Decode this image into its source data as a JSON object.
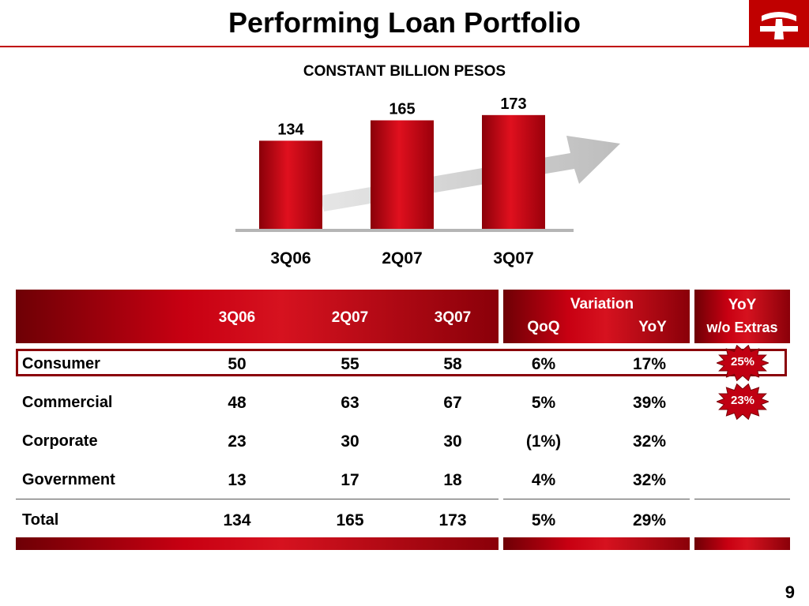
{
  "title": "Performing Loan Portfolio",
  "page_number": "9",
  "colors": {
    "brand_red": "#c00000",
    "dark_red": "#8a0009",
    "arrow_gray": "#cfcfcf"
  },
  "logo": {
    "icon": "bank-logo-icon"
  },
  "chart_data": {
    "type": "bar",
    "title": "CONSTANT BILLION PESOS",
    "categories": [
      "3Q06",
      "2Q07",
      "3Q07"
    ],
    "values": [
      134,
      165,
      173
    ],
    "data_labels": [
      "134",
      "165",
      "173"
    ],
    "xlabel": "",
    "ylabel": "",
    "ylim": [
      0,
      180
    ],
    "grid": false,
    "trend_arrow": true
  },
  "table": {
    "header": {
      "periods": [
        "3Q06",
        "2Q07",
        "3Q07"
      ],
      "variation_label": "Variation",
      "variation_cols": [
        "QoQ",
        "YoY"
      ],
      "yoy_extras_top": "YoY",
      "yoy_extras_bottom": "w/o Extras"
    },
    "rows": [
      {
        "label": "Consumer",
        "values": [
          "50",
          "55",
          "58",
          "6%",
          "17%"
        ],
        "extras": "25%",
        "highlighted": true
      },
      {
        "label": "Commercial",
        "values": [
          "48",
          "63",
          "67",
          "5%",
          "39%"
        ],
        "extras": "23%"
      },
      {
        "label": "Corporate",
        "values": [
          "23",
          "30",
          "30",
          "(1%)",
          "32%"
        ]
      },
      {
        "label": "Government",
        "values": [
          "13",
          "17",
          "18",
          "4%",
          "32%"
        ]
      },
      {
        "label": "Total",
        "values": [
          "134",
          "165",
          "173",
          "5%",
          "29%"
        ]
      }
    ]
  }
}
